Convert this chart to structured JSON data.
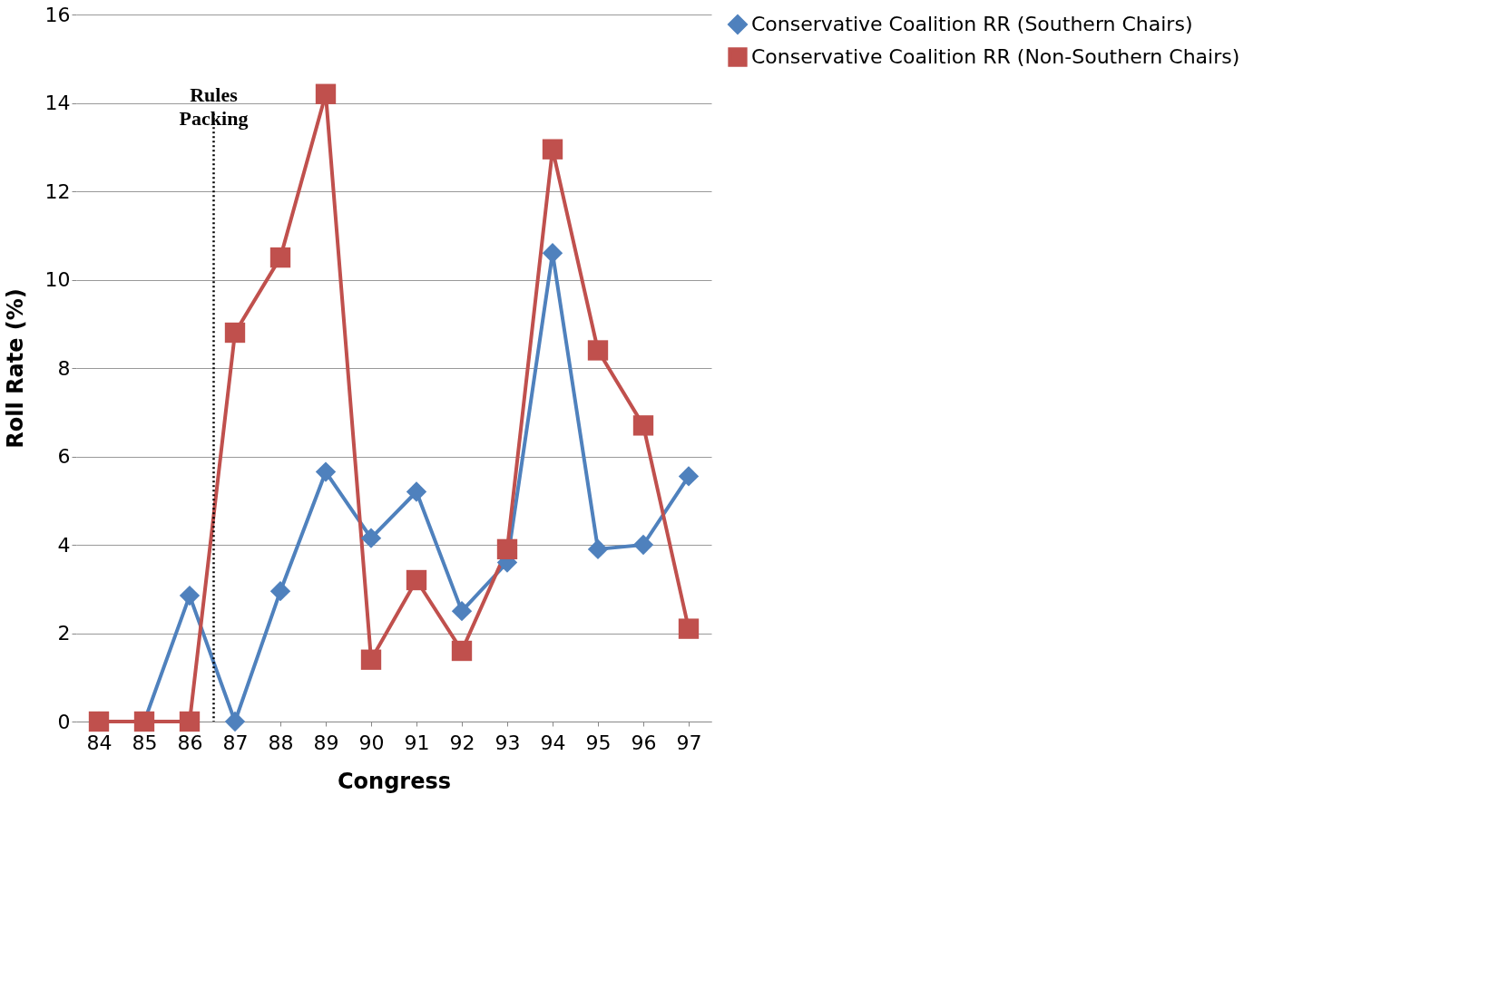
{
  "chart_data": {
    "type": "line",
    "xlabel": "Congress",
    "ylabel": "Roll Rate (%)",
    "x": [
      84,
      85,
      86,
      87,
      88,
      89,
      90,
      91,
      92,
      93,
      94,
      95,
      96,
      97
    ],
    "xlim": [
      83.5,
      97.5
    ],
    "xticks": [
      84,
      85,
      86,
      87,
      88,
      89,
      90,
      91,
      92,
      93,
      94,
      95,
      96,
      97
    ],
    "ylim": [
      0,
      16
    ],
    "yticks": [
      0,
      2,
      4,
      6,
      8,
      10,
      12,
      14,
      16
    ],
    "grid": "y",
    "legend": "right",
    "series": [
      {
        "name": "Conservative Coalition RR (Southern Chairs)",
        "color": "#4f81bd",
        "marker": "diamond",
        "values": [
          0,
          0,
          2.85,
          0,
          2.95,
          5.65,
          4.15,
          5.2,
          2.5,
          3.6,
          10.6,
          3.9,
          4.0,
          5.55
        ]
      },
      {
        "name": "Conservative Coalition RR (Non-Southern Chairs)",
        "color": "#c0504d",
        "marker": "square",
        "values": [
          0,
          0,
          0,
          8.8,
          10.5,
          14.2,
          1.4,
          3.2,
          1.6,
          3.9,
          12.95,
          8.4,
          6.7,
          2.1
        ]
      }
    ],
    "ref_lines": [
      {
        "axis": "x",
        "value": 86.53,
        "label": "Rules Packing",
        "line_style": "dotted",
        "color": "#000000"
      }
    ]
  }
}
